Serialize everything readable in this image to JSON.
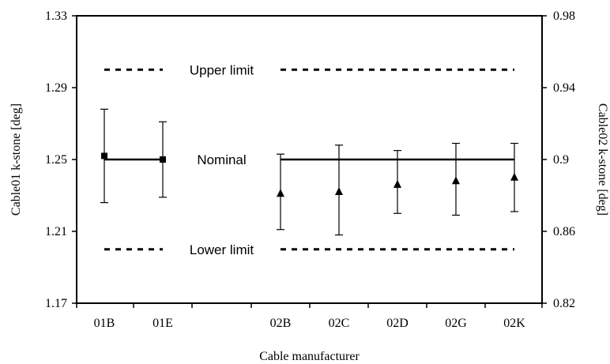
{
  "chart_data": {
    "type": "scatter",
    "xlabel": "Cable manufacturer",
    "ylabel_left": "Cable01 k-stone [deg]",
    "ylabel_right": "Cable02  k-stone [deg]",
    "categories": [
      "01B",
      "01E",
      "02B",
      "02C",
      "02D",
      "02G",
      "02K"
    ],
    "y_left": {
      "range": [
        1.17,
        1.33
      ],
      "ticks": [
        "1.17",
        "1.21",
        "1.25",
        "1.29",
        "1.33"
      ]
    },
    "y_right": {
      "range": [
        0.82,
        0.98
      ],
      "ticks": [
        "0.82",
        "0.86",
        "0.9",
        "0.94",
        "0.98"
      ]
    },
    "grid": false,
    "series": [
      {
        "marker": "square",
        "axis": "left",
        "points": [
          {
            "x": "01B",
            "y": 1.252,
            "low": 1.226,
            "high": 1.278
          },
          {
            "x": "01E",
            "y": 1.25,
            "low": 1.229,
            "high": 1.271
          }
        ]
      },
      {
        "marker": "triangle",
        "axis": "right",
        "points": [
          {
            "x": "02B",
            "y": 0.881,
            "low": 0.861,
            "high": 0.903
          },
          {
            "x": "02C",
            "y": 0.882,
            "low": 0.858,
            "high": 0.908
          },
          {
            "x": "02D",
            "y": 0.886,
            "low": 0.87,
            "high": 0.905
          },
          {
            "x": "02G",
            "y": 0.888,
            "low": 0.869,
            "high": 0.909
          },
          {
            "x": "02K",
            "y": 0.89,
            "low": 0.871,
            "high": 0.909
          }
        ]
      }
    ],
    "reference_lines": [
      {
        "label": "Upper limit",
        "style": "dashed",
        "y_left": 1.3
      },
      {
        "label": "Nominal",
        "style": "solid",
        "y_left": 1.25
      },
      {
        "label": "Lower limit",
        "style": "dashed",
        "y_left": 1.2
      }
    ]
  }
}
